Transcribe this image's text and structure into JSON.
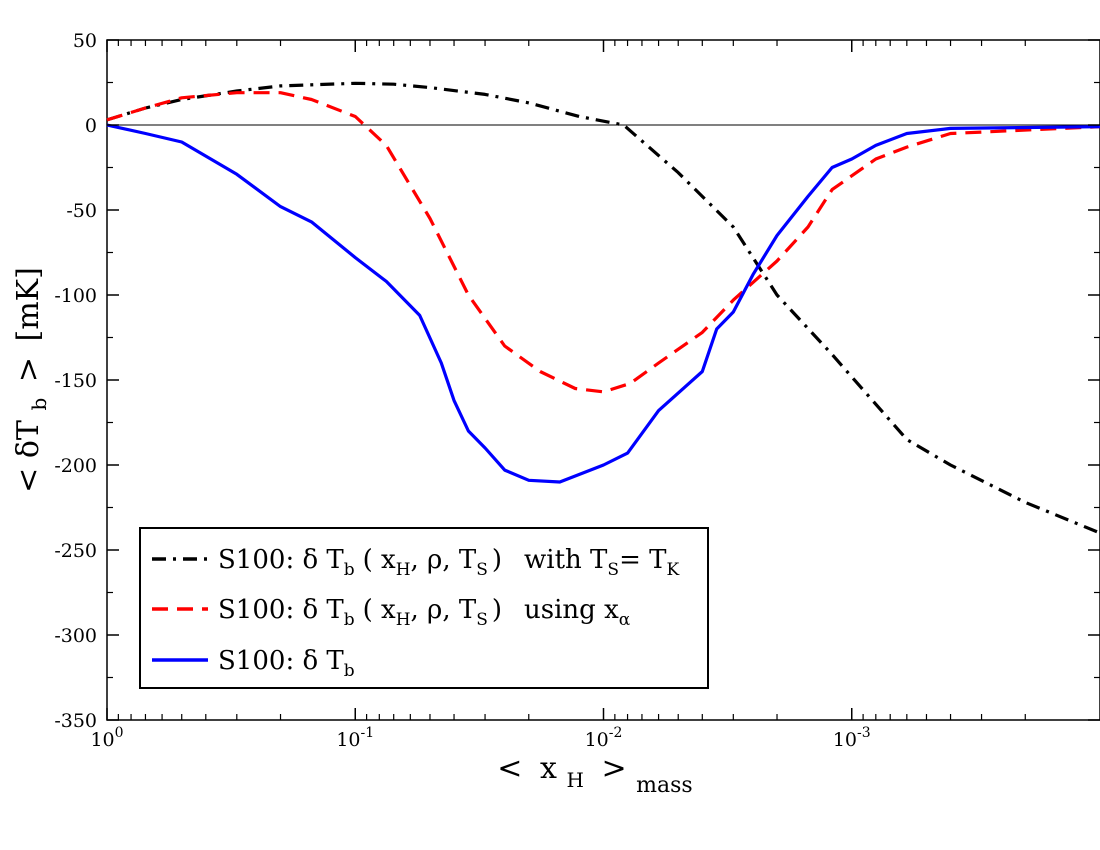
{
  "chart_data": {
    "type": "line",
    "title": "",
    "xscale": "log",
    "xreversed": true,
    "xlim": [
      1,
      0.0001
    ],
    "ylim": [
      -350,
      50
    ],
    "xticks": [
      {
        "value": 1,
        "base": "10",
        "exp": "0"
      },
      {
        "value": 0.1,
        "base": "10",
        "exp": "-1"
      },
      {
        "value": 0.01,
        "base": "10",
        "exp": "-2"
      },
      {
        "value": 0.001,
        "base": "10",
        "exp": "-3"
      }
    ],
    "yticks": [
      50,
      0,
      -50,
      -100,
      -150,
      -200,
      -250,
      -300,
      -350
    ],
    "yticks_text": [
      "50",
      "0",
      "-50",
      "-100",
      "-150",
      "-200",
      "-250",
      "-300",
      "-350"
    ],
    "xlabel": {
      "open": "<",
      "var": "x",
      "sub": "H",
      "close": ">",
      "close_sub": "mass"
    },
    "ylabel": {
      "open": "<",
      "var": "δT",
      "sub": "b",
      "close": ">",
      "unit": "[mK]"
    },
    "zero_line": 0,
    "legend": {
      "position": "bottom-left",
      "entries": [
        {
          "prefix": "S100: δ T",
          "sub": "b",
          "args": "( x",
          "argsub": "H",
          "rest1": ", ρ, T",
          "restsub": "S",
          "rest2": ")",
          "suffix": "with T",
          "suffixsub": "S",
          "suffix2": "= T",
          "suffix2sub": "K"
        },
        {
          "prefix": "S100: δ T",
          "sub": "b",
          "args": "( x",
          "argsub": "H",
          "rest1": ", ρ, T",
          "restsub": "S",
          "rest2": ")",
          "suffix": "using x",
          "suffixsub": "α"
        },
        {
          "prefix": "S100: δ T",
          "sub": "b"
        }
      ]
    },
    "series": [
      {
        "name": "S100: δ Tb (xH, ρ, TS) with TS = TK",
        "color": "#000000",
        "style": "dash-dot",
        "x": [
          1,
          0.7,
          0.5,
          0.3,
          0.2,
          0.1,
          0.07,
          0.05,
          0.03,
          0.02,
          0.0125,
          0.0083,
          0.005,
          0.003,
          0.002,
          0.0012,
          0.0006,
          0.0004,
          0.0002,
          0.0001
        ],
        "y": [
          3,
          10,
          15,
          20,
          23,
          24.5,
          24,
          22,
          18,
          13,
          5,
          0,
          -28,
          -60,
          -100,
          -135,
          -185,
          -200,
          -222,
          -240
        ]
      },
      {
        "name": "S100: δ Tb (xH, ρ, TS) using xα",
        "color": "#ff0000",
        "style": "dashed",
        "x": [
          1,
          0.7,
          0.5,
          0.3,
          0.2,
          0.15,
          0.1,
          0.075,
          0.05,
          0.035,
          0.025,
          0.018,
          0.013,
          0.01,
          0.0078,
          0.006,
          0.004,
          0.003,
          0.002,
          0.0015,
          0.0012,
          0.0008,
          0.0006,
          0.0004,
          0.0001
        ],
        "y": [
          3,
          10,
          16,
          19,
          19,
          15,
          5,
          -12,
          -55,
          -100,
          -130,
          -145,
          -155,
          -157,
          -152,
          -140,
          -122,
          -103,
          -80,
          -60,
          -38,
          -20,
          -13,
          -5,
          -1
        ]
      },
      {
        "name": "S100: δ Tb",
        "color": "#0000ff",
        "style": "solid",
        "x": [
          1,
          0.7,
          0.5,
          0.3,
          0.2,
          0.15,
          0.1,
          0.075,
          0.055,
          0.045,
          0.04,
          0.035,
          0.03,
          0.025,
          0.02,
          0.015,
          0.01,
          0.008,
          0.006,
          0.004,
          0.0035,
          0.003,
          0.0025,
          0.002,
          0.0015,
          0.0012,
          0.001,
          0.0008,
          0.0006,
          0.0004,
          0.0001
        ],
        "y": [
          0,
          -5,
          -10,
          -29,
          -48,
          -57,
          -78,
          -92,
          -112,
          -140,
          -162,
          -180,
          -190,
          -203,
          -209,
          -210,
          -200,
          -193,
          -168,
          -145,
          -120,
          -110,
          -88,
          -65,
          -42,
          -25,
          -20,
          -12,
          -5,
          -2,
          -1
        ]
      }
    ]
  }
}
